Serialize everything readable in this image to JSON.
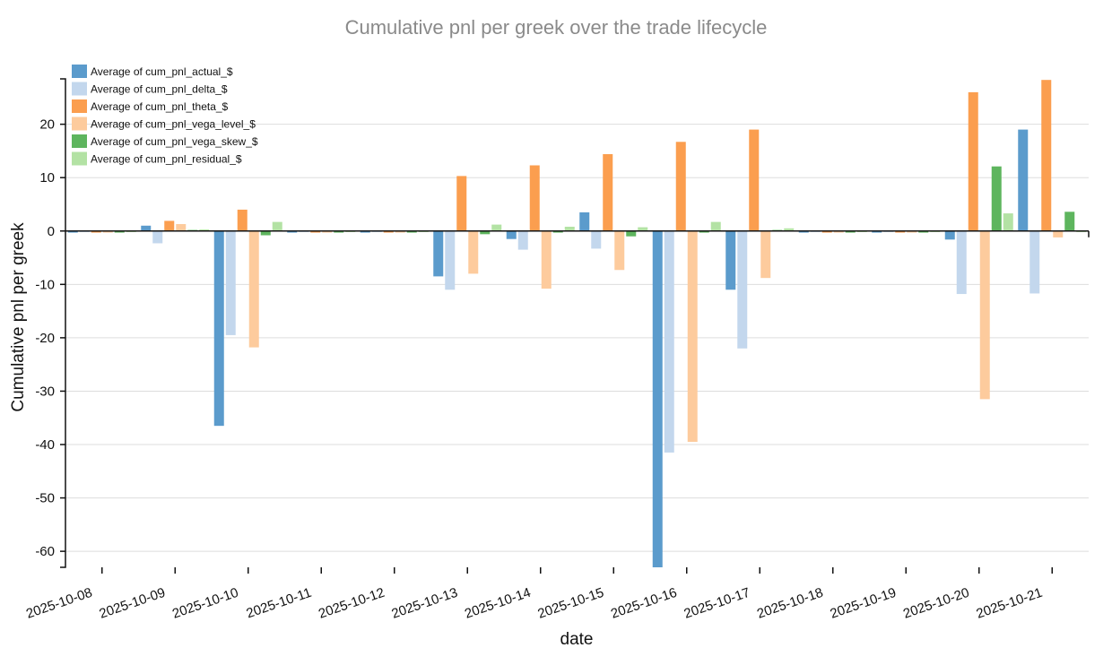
{
  "chart_data": {
    "type": "bar",
    "title": "Cumulative pnl per greek over the trade lifecycle",
    "xlabel": "date",
    "ylabel": "Cumulative pnl per greek",
    "ylim": [
      -63,
      28.5
    ],
    "yticks": [
      20,
      10,
      0,
      -10,
      -20,
      -30,
      -40,
      -50,
      -60
    ],
    "grid": true,
    "legend_position": "top-left",
    "categories": [
      "2025-10-08",
      "2025-10-09",
      "2025-10-10",
      "2025-10-11",
      "2025-10-12",
      "2025-10-13",
      "2025-10-14",
      "2025-10-15",
      "2025-10-16",
      "2025-10-17",
      "2025-10-18",
      "2025-10-19",
      "2025-10-20",
      "2025-10-21"
    ],
    "series": [
      {
        "name": "Average of cum_pnl_actual_$",
        "color": "#5b9bcc",
        "values": [
          -0.3,
          1.0,
          -36.5,
          -0.3,
          -0.3,
          -8.5,
          -1.5,
          3.5,
          -63.0,
          -11.0,
          -0.3,
          -0.3,
          -1.6,
          19.0
        ]
      },
      {
        "name": "Average of cum_pnl_delta_$",
        "color": "#c3d7ed",
        "values": [
          0,
          -2.3,
          -19.5,
          0,
          0,
          -11.0,
          -3.5,
          -3.3,
          -41.5,
          -22.0,
          0,
          0,
          -11.8,
          -11.7
        ]
      },
      {
        "name": "Average of cum_pnl_theta_$",
        "color": "#fb9e4f",
        "values": [
          -0.3,
          1.9,
          4.0,
          -0.3,
          -0.3,
          10.3,
          12.3,
          14.4,
          16.7,
          19.0,
          -0.3,
          -0.3,
          26.0,
          28.3
        ]
      },
      {
        "name": "Average of cum_pnl_vega_level_$",
        "color": "#fdcb9d",
        "values": [
          -0.3,
          1.3,
          -21.8,
          -0.3,
          -0.3,
          -8.0,
          -10.8,
          -7.3,
          -39.5,
          -8.8,
          -0.3,
          -0.3,
          -31.5,
          -1.2
        ]
      },
      {
        "name": "Average of cum_pnl_vega_skew_$",
        "color": "#5eb55e",
        "values": [
          -0.3,
          0.2,
          -0.8,
          -0.3,
          -0.3,
          -0.6,
          -0.3,
          -1.0,
          -0.3,
          0.2,
          -0.3,
          -0.3,
          12.1,
          3.6
        ]
      },
      {
        "name": "Average of cum_pnl_residual_$",
        "color": "#b3e2a4",
        "values": [
          0,
          0.3,
          1.7,
          0,
          0,
          1.2,
          0.8,
          0.7,
          1.7,
          0.5,
          0,
          0,
          3.3,
          0
        ]
      }
    ]
  }
}
